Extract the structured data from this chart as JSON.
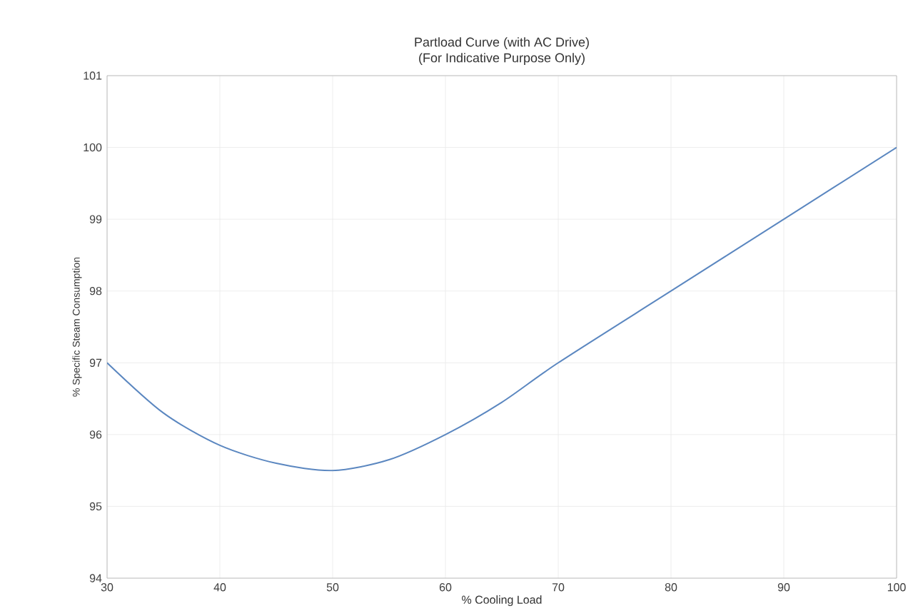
{
  "chart_data": {
    "type": "line",
    "title": "Partload Curve (with AC Drive)",
    "subtitle": "(For Indicative Purpose Only)",
    "xlabel": "% Cooling Load",
    "ylabel": "% Specific Steam Consumption",
    "x": [
      30,
      35,
      40,
      45,
      50,
      55,
      60,
      65,
      70,
      80,
      90,
      100
    ],
    "series": [
      {
        "color": "#5b87c0",
        "values": [
          97.0,
          96.3,
          95.85,
          95.6,
          95.5,
          95.65,
          96.0,
          96.45,
          97.0,
          98.0,
          99.0,
          100.0
        ]
      }
    ],
    "xlim": [
      30,
      100
    ],
    "xticks": [
      30,
      40,
      50,
      60,
      70,
      80,
      90,
      100
    ],
    "ylim": [
      94,
      101
    ],
    "yticks": [
      94,
      95,
      96,
      97,
      98,
      99,
      100,
      101
    ],
    "grid": true,
    "marker": "none",
    "line_style": "solid"
  }
}
